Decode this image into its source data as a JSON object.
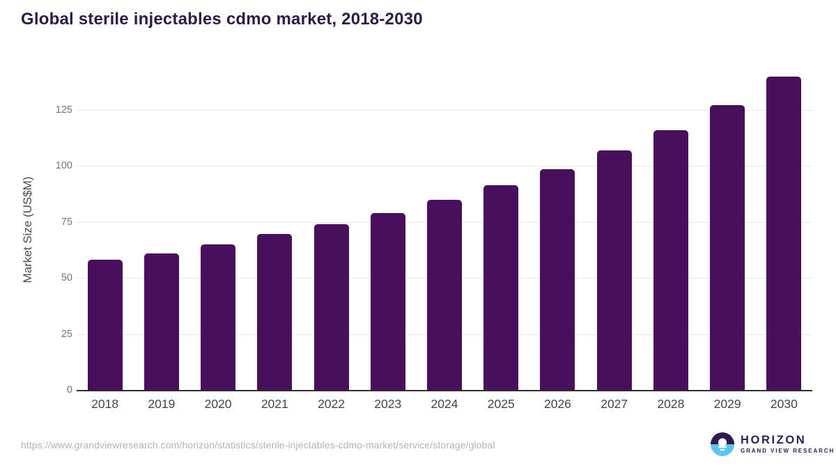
{
  "chart_data": {
    "type": "bar",
    "title": "Global sterile injectables cdmo market, 2018-2030",
    "categories": [
      "2018",
      "2019",
      "2020",
      "2021",
      "2022",
      "2023",
      "2024",
      "2025",
      "2026",
      "2027",
      "2028",
      "2029",
      "2030"
    ],
    "values": [
      58,
      61,
      65,
      69.5,
      74,
      79,
      85,
      91.5,
      98.5,
      107,
      116,
      127,
      140
    ],
    "xlabel": "",
    "ylabel": "Market Size (US$M)",
    "ylim": [
      0,
      143
    ],
    "yticks": [
      0,
      25,
      50,
      75,
      100,
      125
    ],
    "grid": true,
    "legend": false
  },
  "footer": {
    "source_url": "https://www.grandviewresearch.com/horizon/statistics/sterile-injectables-cdmo-market/service/storage/global",
    "logo": {
      "brand": "HORIZON",
      "subtitle": "GRAND VIEW RESEARCH"
    }
  },
  "colors": {
    "bar": "#48105C",
    "title": "#2E1A46",
    "axis_line": "#2d2d2d",
    "gridline": "#e9e9e9",
    "y_tick_label": "#757575",
    "x_tick_label": "#454545",
    "source_text": "#b3b3b3",
    "logo_dark": "#2E2052",
    "logo_blue": "#5BC5F0"
  }
}
